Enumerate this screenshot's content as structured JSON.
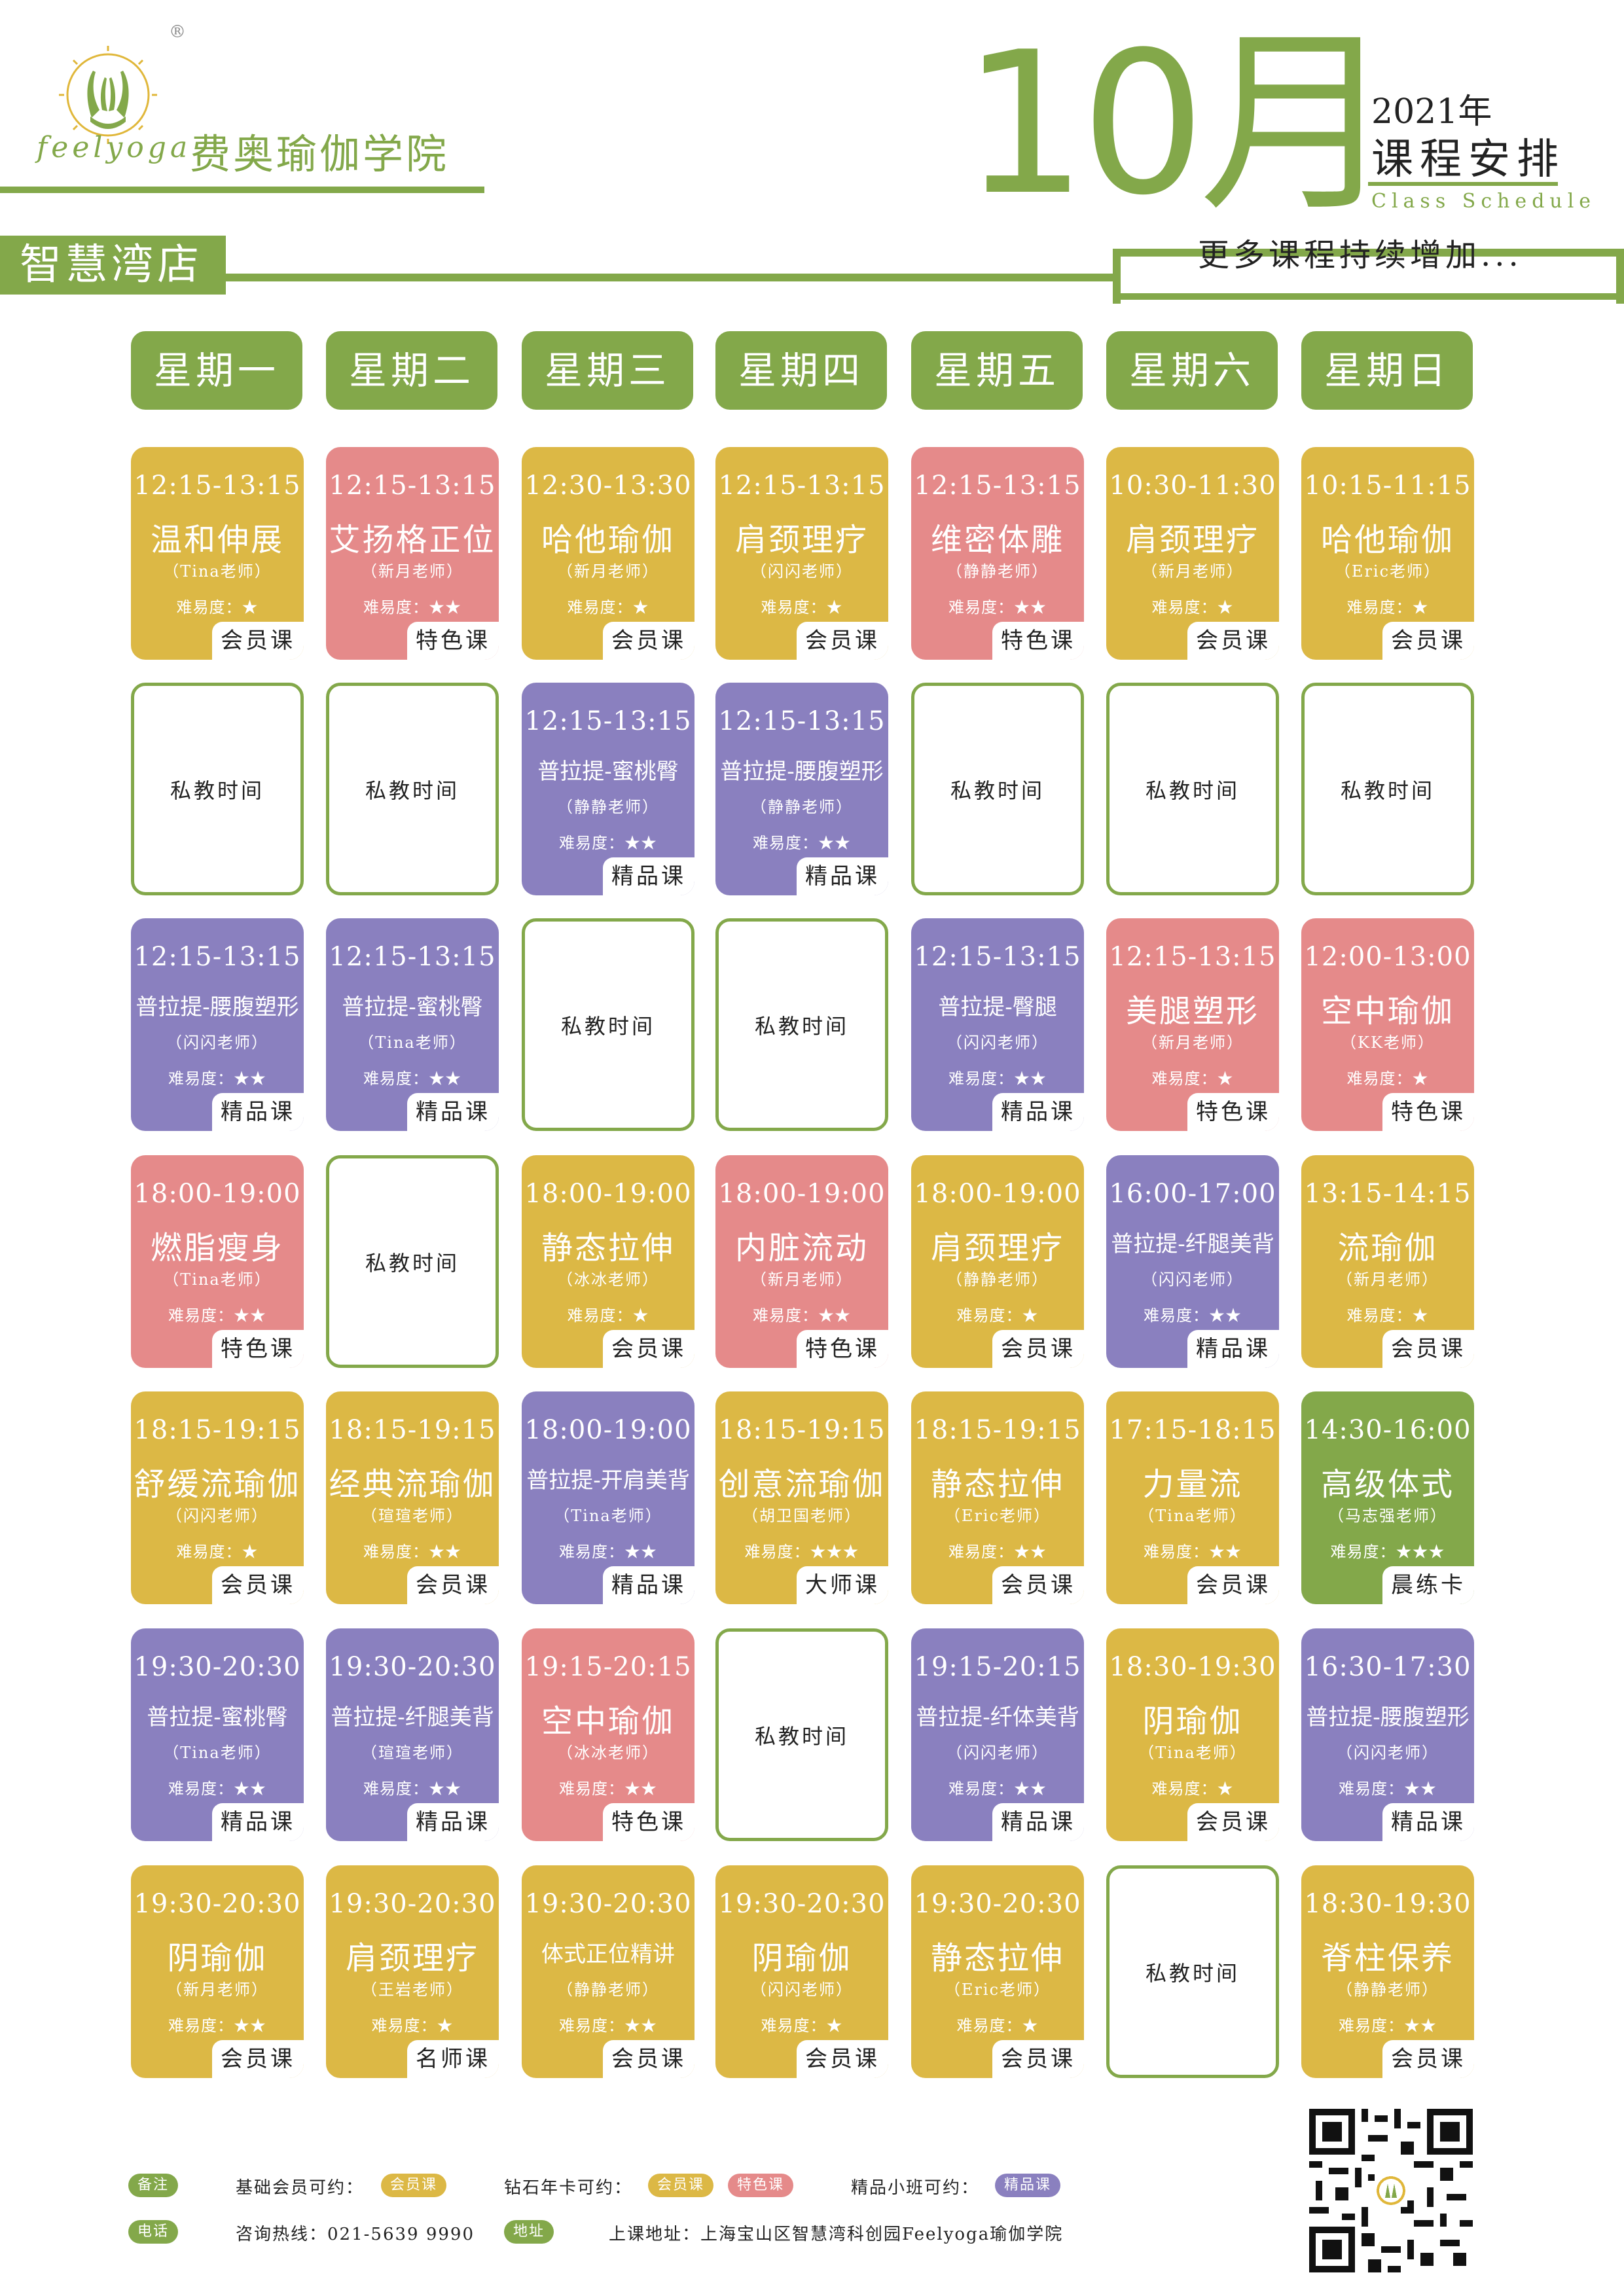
{
  "header": {
    "brand_en": "feelyoga",
    "brand_cn": "费奥瑜伽学院",
    "registered": "®",
    "month": "10月",
    "year": "2021年",
    "title": "课程安排",
    "title_en": "Class Schedule",
    "store": "智慧湾店",
    "more": "更多课程持续增加..."
  },
  "colors": {
    "brand_green": "#83a84a",
    "member_yellow": "#dcb845",
    "special_pink": "#e58a8a",
    "premium_purple": "#8a80bf"
  },
  "days": [
    "星期一",
    "星期二",
    "星期三",
    "星期四",
    "星期五",
    "星期六",
    "星期日"
  ],
  "rows": [
    [
      {
        "type": "yellow",
        "time": "12:15-13:15",
        "name": "温和伸展",
        "teacher": "（Tina老师）",
        "diff": "难易度：★",
        "tag": "会员课"
      },
      {
        "type": "pink",
        "time": "12:15-13:15",
        "name": "艾扬格正位",
        "teacher": "（新月老师）",
        "diff": "难易度：★★",
        "tag": "特色课"
      },
      {
        "type": "yellow",
        "time": "12:30-13:30",
        "name": "哈他瑜伽",
        "teacher": "（新月老师）",
        "diff": "难易度：★",
        "tag": "会员课"
      },
      {
        "type": "yellow",
        "time": "12:15-13:15",
        "name": "肩颈理疗",
        "teacher": "（闪闪老师）",
        "diff": "难易度：★",
        "tag": "会员课"
      },
      {
        "type": "pink",
        "time": "12:15-13:15",
        "name": "维密体雕",
        "teacher": "（静静老师）",
        "diff": "难易度：★★",
        "tag": "特色课"
      },
      {
        "type": "yellow",
        "time": "10:30-11:30",
        "name": "肩颈理疗",
        "teacher": "（新月老师）",
        "diff": "难易度：★",
        "tag": "会员课"
      },
      {
        "type": "yellow",
        "time": "10:15-11:15",
        "name": "哈他瑜伽",
        "teacher": "（Eric老师）",
        "diff": "难易度：★",
        "tag": "会员课"
      }
    ],
    [
      {
        "type": "free",
        "label": "私教时间"
      },
      {
        "type": "free",
        "label": "私教时间"
      },
      {
        "type": "purple",
        "time": "12:15-13:15",
        "name": "普拉提-蜜桃臀",
        "teacher": "（静静老师）",
        "diff": "难易度：★★",
        "tag": "精品课",
        "small": true
      },
      {
        "type": "purple",
        "time": "12:15-13:15",
        "name": "普拉提-腰腹塑形",
        "teacher": "（静静老师）",
        "diff": "难易度：★★",
        "tag": "精品课",
        "small": true
      },
      {
        "type": "free",
        "label": "私教时间"
      },
      {
        "type": "free",
        "label": "私教时间"
      },
      {
        "type": "free",
        "label": "私教时间"
      }
    ],
    [
      {
        "type": "purple",
        "time": "12:15-13:15",
        "name": "普拉提-腰腹塑形",
        "teacher": "（闪闪老师）",
        "diff": "难易度：★★",
        "tag": "精品课",
        "small": true
      },
      {
        "type": "purple",
        "time": "12:15-13:15",
        "name": "普拉提-蜜桃臀",
        "teacher": "（Tina老师）",
        "diff": "难易度：★★",
        "tag": "精品课",
        "small": true
      },
      {
        "type": "free",
        "label": "私教时间"
      },
      {
        "type": "free",
        "label": "私教时间"
      },
      {
        "type": "purple",
        "time": "12:15-13:15",
        "name": "普拉提-臀腿",
        "teacher": "（闪闪老师）",
        "diff": "难易度：★★",
        "tag": "精品课",
        "small": true
      },
      {
        "type": "pink",
        "time": "12:15-13:15",
        "name": "美腿塑形",
        "teacher": "（新月老师）",
        "diff": "难易度：★",
        "tag": "特色课"
      },
      {
        "type": "pink",
        "time": "12:00-13:00",
        "name": "空中瑜伽",
        "teacher": "（KK老师）",
        "diff": "难易度：★",
        "tag": "特色课"
      }
    ],
    [
      {
        "type": "pink",
        "time": "18:00-19:00",
        "name": "燃脂瘦身",
        "teacher": "（Tina老师）",
        "diff": "难易度：★★",
        "tag": "特色课"
      },
      {
        "type": "free",
        "label": "私教时间"
      },
      {
        "type": "yellow",
        "time": "18:00-19:00",
        "name": "静态拉伸",
        "teacher": "（冰冰老师）",
        "diff": "难易度：★",
        "tag": "会员课"
      },
      {
        "type": "pink",
        "time": "18:00-19:00",
        "name": "内脏流动",
        "teacher": "（新月老师）",
        "diff": "难易度：★★",
        "tag": "特色课"
      },
      {
        "type": "yellow",
        "time": "18:00-19:00",
        "name": "肩颈理疗",
        "teacher": "（静静老师）",
        "diff": "难易度：★",
        "tag": "会员课"
      },
      {
        "type": "purple",
        "time": "16:00-17:00",
        "name": "普拉提-纤腿美背",
        "teacher": "（闪闪老师）",
        "diff": "难易度：★★",
        "tag": "精品课",
        "small": true
      },
      {
        "type": "yellow",
        "time": "13:15-14:15",
        "name": "流瑜伽",
        "teacher": "（新月老师）",
        "diff": "难易度：★",
        "tag": "会员课"
      }
    ],
    [
      {
        "type": "yellow",
        "time": "18:15-19:15",
        "name": "舒缓流瑜伽",
        "teacher": "（闪闪老师）",
        "diff": "难易度：★",
        "tag": "会员课"
      },
      {
        "type": "yellow",
        "time": "18:15-19:15",
        "name": "经典流瑜伽",
        "teacher": "（瑄瑄老师）",
        "diff": "难易度：★★",
        "tag": "会员课"
      },
      {
        "type": "purple",
        "time": "18:00-19:00",
        "name": "普拉提-开肩美背",
        "teacher": "（Tina老师）",
        "diff": "难易度：★★",
        "tag": "精品课",
        "small": true
      },
      {
        "type": "yellow",
        "time": "18:15-19:15",
        "name": "创意流瑜伽",
        "teacher": "（胡卫国老师）",
        "diff": "难易度：★★★",
        "tag": "大师课"
      },
      {
        "type": "yellow",
        "time": "18:15-19:15",
        "name": "静态拉伸",
        "teacher": "（Eric老师）",
        "diff": "难易度：★★",
        "tag": "会员课"
      },
      {
        "type": "yellow",
        "time": "17:15-18:15",
        "name": "力量流",
        "teacher": "（Tina老师）",
        "diff": "难易度：★★",
        "tag": "会员课"
      },
      {
        "type": "green",
        "time": "14:30-16:00",
        "name": "高级体式",
        "teacher": "（马志强老师）",
        "diff": "难易度：★★★",
        "tag": "晨练卡"
      }
    ],
    [
      {
        "type": "purple",
        "time": "19:30-20:30",
        "name": "普拉提-蜜桃臀",
        "teacher": "（Tina老师）",
        "diff": "难易度：★★",
        "tag": "精品课",
        "small": true
      },
      {
        "type": "purple",
        "time": "19:30-20:30",
        "name": "普拉提-纤腿美背",
        "teacher": "（瑄瑄老师）",
        "diff": "难易度：★★",
        "tag": "精品课",
        "small": true
      },
      {
        "type": "pink",
        "time": "19:15-20:15",
        "name": "空中瑜伽",
        "teacher": "（冰冰老师）",
        "diff": "难易度：★★",
        "tag": "特色课"
      },
      {
        "type": "free",
        "label": "私教时间"
      },
      {
        "type": "purple",
        "time": "19:15-20:15",
        "name": "普拉提-纤体美背",
        "teacher": "（闪闪老师）",
        "diff": "难易度：★★",
        "tag": "精品课",
        "small": true
      },
      {
        "type": "yellow",
        "time": "18:30-19:30",
        "name": "阴瑜伽",
        "teacher": "（Tina老师）",
        "diff": "难易度：★",
        "tag": "会员课"
      },
      {
        "type": "purple",
        "time": "16:30-17:30",
        "name": "普拉提-腰腹塑形",
        "teacher": "（闪闪老师）",
        "diff": "难易度：★★",
        "tag": "精品课",
        "small": true
      }
    ],
    [
      {
        "type": "yellow",
        "time": "19:30-20:30",
        "name": "阴瑜伽",
        "teacher": "（新月老师）",
        "diff": "难易度：★★",
        "tag": "会员课"
      },
      {
        "type": "yellow",
        "time": "19:30-20:30",
        "name": "肩颈理疗",
        "teacher": "（王岩老师）",
        "diff": "难易度：★",
        "tag": "名师课"
      },
      {
        "type": "yellow",
        "time": "19:30-20:30",
        "name": "体式正位精讲",
        "teacher": "（静静老师）",
        "diff": "难易度：★★",
        "tag": "会员课",
        "small": true
      },
      {
        "type": "yellow",
        "time": "19:30-20:30",
        "name": "阴瑜伽",
        "teacher": "（闪闪老师）",
        "diff": "难易度：★",
        "tag": "会员课"
      },
      {
        "type": "yellow",
        "time": "19:30-20:30",
        "name": "静态拉伸",
        "teacher": "（Eric老师）",
        "diff": "难易度：★",
        "tag": "会员课"
      },
      {
        "type": "free",
        "label": "私教时间"
      },
      {
        "type": "yellow",
        "time": "18:30-19:30",
        "name": "脊柱保养",
        "teacher": "（静静老师）",
        "diff": "难易度：★★",
        "tag": "会员课"
      }
    ]
  ],
  "footer": {
    "note_label": "备注",
    "basic_label": "基础会员可约：",
    "basic_pill": "会员课",
    "diamond_label": "钻石年卡可约：",
    "diamond_pill1": "会员课",
    "diamond_pill2": "特色课",
    "premium_label": "精品小班可约：",
    "premium_pill": "精品课",
    "phone_label": "电话",
    "phone_text": "咨询热线：021-5639 9990",
    "address_label": "地址",
    "address_text": "上课地址：上海宝山区智慧湾科创园Feelyoga瑜伽学院"
  }
}
